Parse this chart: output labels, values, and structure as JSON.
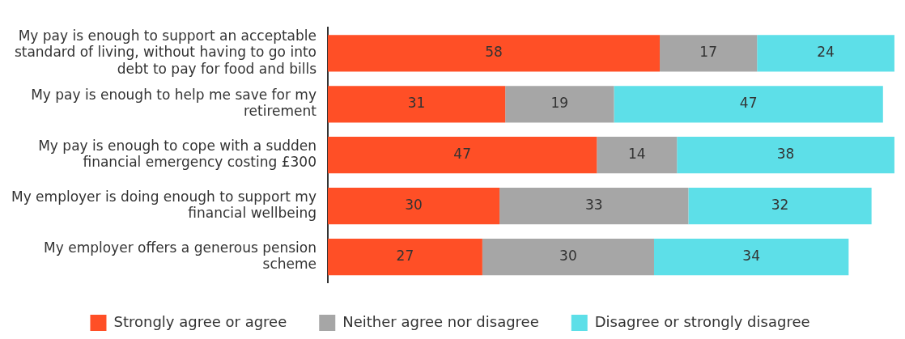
{
  "chart_data": {
    "type": "bar",
    "orientation": "horizontal",
    "stacked": true,
    "data_labels": true,
    "grid": false,
    "legend": "bottom",
    "tick_labels": "y",
    "categories": [
      "My pay is enough to support an acceptable standard of living, without having to go into debt to pay for food and bills",
      "My pay is enough to help me save for my retirement",
      "My pay is enough to cope with a sudden financial emergency costing £300",
      "My employer is doing enough to support my financial wellbeing",
      "My employer offers a generous pension scheme"
    ],
    "series": [
      {
        "name": "Strongly agree or agree",
        "color": "#ff4f26",
        "values": [
          58,
          31,
          47,
          30,
          27
        ]
      },
      {
        "name": "Neither agree nor disagree",
        "color": "#a6a6a6",
        "values": [
          17,
          19,
          14,
          33,
          30
        ]
      },
      {
        "name": "Disagree or strongly disagree",
        "color": "#5ddfe8",
        "values": [
          24,
          47,
          38,
          32,
          34
        ]
      }
    ]
  }
}
